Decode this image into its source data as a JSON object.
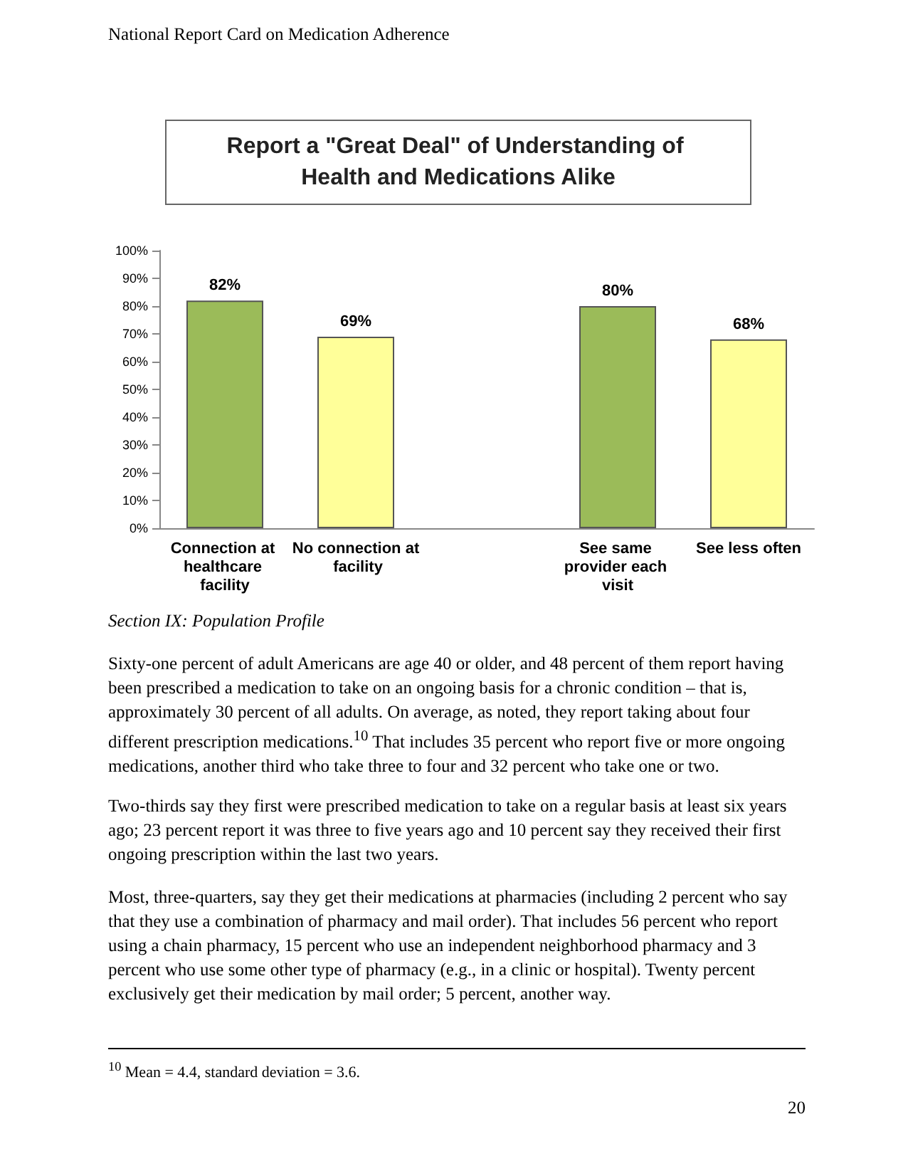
{
  "chart_data": {
    "type": "bar",
    "title": "Report a \"Great Deal\" of Understanding of Health and Medications Alike",
    "categories": [
      "Connection at healthcare facility",
      "No connection at facility",
      null,
      "See same provider each visit",
      "See less often"
    ],
    "values": [
      82,
      69,
      null,
      80,
      68
    ],
    "colors": [
      "#9bbb59",
      "#ffff99",
      null,
      "#9bbb59",
      "#ffff99"
    ],
    "value_labels": [
      "82%",
      "69%",
      null,
      "80%",
      "68%"
    ],
    "ylim": [
      0,
      100
    ],
    "yticks": [
      {
        "value": 0,
        "label": "0%"
      },
      {
        "value": 10,
        "label": "10%"
      },
      {
        "value": 20,
        "label": "20%"
      },
      {
        "value": 30,
        "label": "30%"
      },
      {
        "value": 40,
        "label": "40%"
      },
      {
        "value": 50,
        "label": "50%"
      },
      {
        "value": 60,
        "label": "60%"
      },
      {
        "value": 70,
        "label": "70%"
      },
      {
        "value": 80,
        "label": "80%"
      },
      {
        "value": 90,
        "label": "90%"
      },
      {
        "value": 100,
        "label": "100%"
      }
    ],
    "grid": false,
    "annotations": [
      "National Report Card on Medication Adherence",
      "Section IX: Population Profile",
      "Sixty-one percent of adult Americans are age 40 or older, and 48 percent of them report having been prescribed a medication to take on an ongoing basis for a chronic condition – that is, approximately 30 percent of all adults. On average, as noted, they report taking about four different prescription medications.$^{10}$ That includes 35 percent who report five or more ongoing medications, another third who take three to four and 32 percent who take one or two.",
      "Two-thirds say they first were prescribed medication to take on a regular basis at least six years ago; 23 percent report it was three to five years ago and 10 percent say they received their first ongoing prescription within the last two years.",
      "Most, three-quarters, say they get their medications at pharmacies (including 2 percent who say that they use a combination of pharmacy and mail order). That includes 56 percent who report using a chain pharmacy, 15 percent who use an independent neighborhood pharmacy and 3 percent who use some other type of pharmacy (e.g., in a clinic or hospital). Twenty percent exclusively get their medication by mail order; 5 percent, another way.",
      "$^{10}$ Mean = 4.4, standard deviation = 3.6.",
      "20"
    ]
  }
}
